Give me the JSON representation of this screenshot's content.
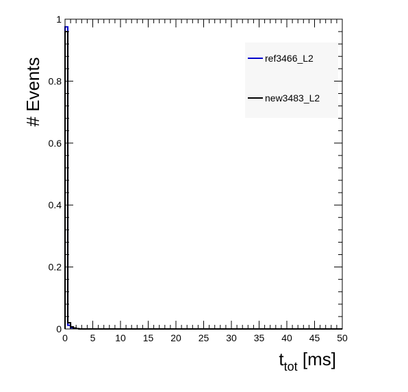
{
  "chart_data": {
    "type": "histogram",
    "title": "",
    "xlabel": "t",
    "xlabel_subscript": "tot",
    "xlabel_unit": " [ms]",
    "ylabel": "# Events",
    "xlim": [
      0,
      50
    ],
    "ylim": [
      0,
      1
    ],
    "xticks": [
      0,
      5,
      10,
      15,
      20,
      25,
      30,
      35,
      40,
      45,
      50
    ],
    "xtick_labels": [
      "0",
      "5",
      "10",
      "15",
      "20",
      "25",
      "30",
      "35",
      "40",
      "45",
      "50"
    ],
    "yticks": [
      0,
      0.2,
      0.4,
      0.6,
      0.8,
      1
    ],
    "ytick_labels": [
      "0",
      "0.2",
      "0.4",
      "0.6",
      "0.8",
      "1"
    ],
    "grid": false,
    "legend_position": "top-right",
    "bin_width": 0.5,
    "series": [
      {
        "name": "ref3466_L2",
        "color": "#0000cc",
        "bins": [
          [
            0,
            0.975
          ],
          [
            0.5,
            0.012
          ],
          [
            1.0,
            0.004
          ],
          [
            1.5,
            0.002
          ],
          [
            2.0,
            0.001
          ],
          [
            2.5,
            0.0
          ]
        ]
      },
      {
        "name": "new3483_L2",
        "color": "#000000",
        "bins": [
          [
            0,
            0.96
          ],
          [
            0.5,
            0.02
          ],
          [
            1.0,
            0.007
          ],
          [
            1.5,
            0.003
          ],
          [
            2.0,
            0.001
          ],
          [
            2.5,
            0.0
          ]
        ]
      }
    ]
  }
}
